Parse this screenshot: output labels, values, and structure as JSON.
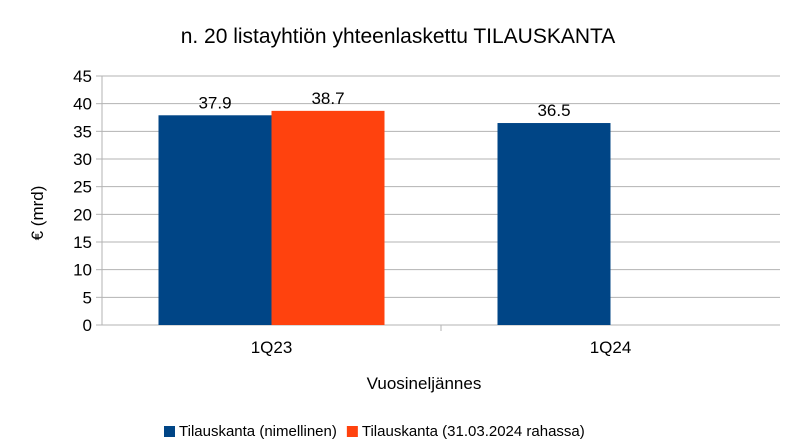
{
  "chart_data": {
    "type": "bar",
    "title": "n. 20 listayhtiön yhteenlaskettu TILAUSKANTA",
    "xlabel": "Vuosineljännes",
    "ylabel": "€ (mrd)",
    "categories": [
      "1Q23",
      "1Q24"
    ],
    "series": [
      {
        "name": "Tilauskanta (nimellinen)",
        "color": "#004586",
        "values": [
          37.9,
          36.5
        ]
      },
      {
        "name": "Tilauskanta (31.03.2024 rahassa)",
        "color": "#ff420e",
        "values": [
          38.7,
          null
        ]
      }
    ],
    "ylim": [
      0,
      45
    ],
    "yticks": [
      0,
      5,
      10,
      15,
      20,
      25,
      30,
      35,
      40,
      45
    ],
    "grid": true,
    "legend": "bottom"
  }
}
